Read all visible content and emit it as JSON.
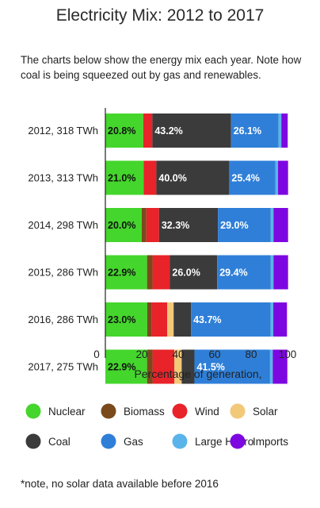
{
  "chart_data": {
    "type": "bar",
    "orientation": "horizontal",
    "stacked": true,
    "title": "Electricity Mix: 2012 to 2017",
    "subtitle": "The charts below show the energy mix each year. Note how coal is being squeezed out by gas and renewables.",
    "xlabel": "Percentage of generation,",
    "ylabel": "",
    "xlim": [
      0,
      100
    ],
    "xticks": [
      0,
      20,
      40,
      60,
      80,
      100
    ],
    "grid": false,
    "legend_position": "bottom",
    "categories": [
      "2012, 318 TWh",
      "2013, 313 TWh",
      "2014, 298 TWh",
      "2015, 286 TWh",
      "2016, 286 TWh",
      "2017, 275 TWh"
    ],
    "series": [
      {
        "name": "Nuclear",
        "color": "#44d62c",
        "label_color": "#111111",
        "values": [
          20.8,
          21.0,
          20.0,
          22.9,
          23.0,
          22.9
        ],
        "labels": [
          "20.8%",
          "21.0%",
          "20.0%",
          "22.9%",
          "23.0%",
          "22.9%"
        ]
      },
      {
        "name": "Biomass",
        "color": "#7a4a1c",
        "label_color": "#ffffff",
        "values": [
          0.0,
          0.0,
          2.5,
          3.0,
          2.5,
          3.0
        ],
        "labels": [
          "",
          "",
          "",
          "",
          "",
          ""
        ]
      },
      {
        "name": "Wind",
        "color": "#e8232a",
        "label_color": "#ffffff",
        "values": [
          5.0,
          7.0,
          7.0,
          9.5,
          8.5,
          12.0
        ],
        "labels": [
          "",
          "",
          "",
          "",
          "",
          ""
        ]
      },
      {
        "name": "Solar",
        "color": "#f2c879",
        "label_color": "#111111",
        "values": [
          0.0,
          0.0,
          0.0,
          0.0,
          3.5,
          4.0
        ],
        "labels": [
          "",
          "",
          "",
          "",
          "",
          ""
        ]
      },
      {
        "name": "Coal",
        "color": "#3b3b3b",
        "label_color": "#ffffff",
        "values": [
          43.2,
          40.0,
          32.3,
          26.0,
          9.5,
          7.0
        ],
        "labels": [
          "43.2%",
          "40.0%",
          "32.3%",
          "26.0%",
          "",
          ""
        ]
      },
      {
        "name": "Gas",
        "color": "#2f7fd8",
        "label_color": "#ffffff",
        "values": [
          26.1,
          25.4,
          29.0,
          29.4,
          43.7,
          41.5
        ],
        "labels": [
          "26.1%",
          "25.4%",
          "29.0%",
          "29.4%",
          "43.7%",
          "41.5%"
        ]
      },
      {
        "name": "Large Hydro",
        "color": "#5ab4ea",
        "label_color": "#111111",
        "values": [
          1.5,
          1.4,
          1.5,
          1.5,
          1.5,
          1.5
        ],
        "labels": [
          "",
          "",
          "",
          "",
          "",
          ""
        ]
      },
      {
        "name": "Imports",
        "color": "#7d07e0",
        "label_color": "#ffffff",
        "values": [
          3.5,
          5.5,
          8.0,
          8.0,
          7.5,
          8.0
        ],
        "labels": [
          "",
          "",
          "",
          "",
          "",
          ""
        ]
      }
    ]
  },
  "footnote": "*note, no solar data available before 2016"
}
